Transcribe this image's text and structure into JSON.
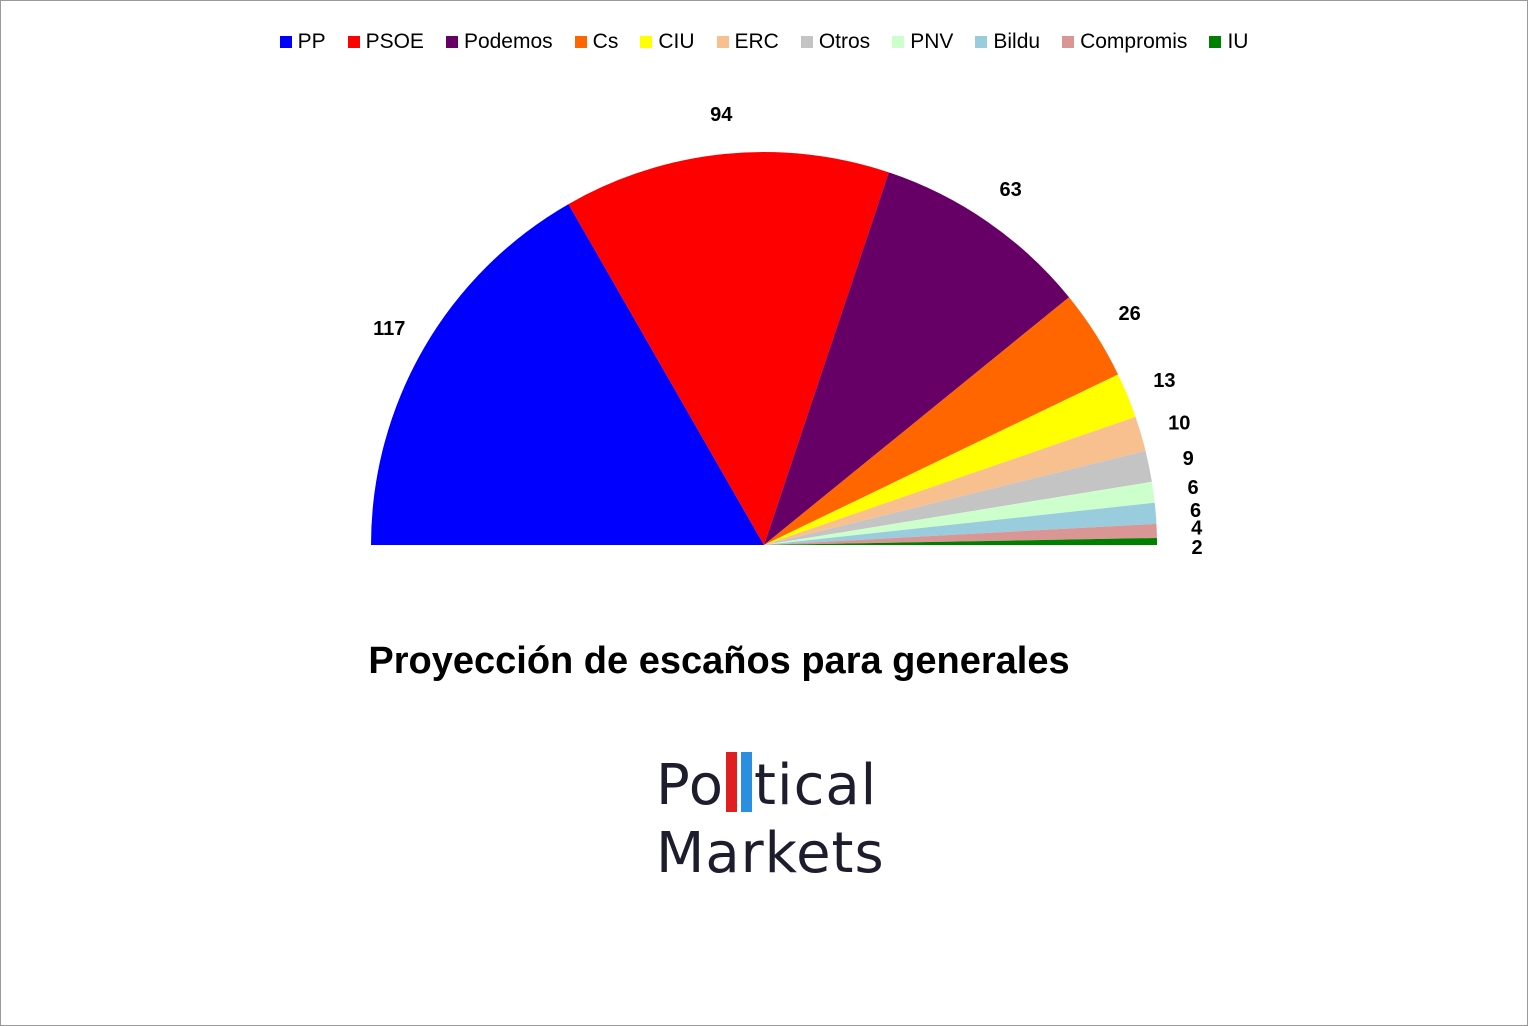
{
  "chart_data": {
    "type": "pie",
    "variant": "half-pie (parliament arc)",
    "title": "Proyección de escaños para generales",
    "categories": [
      "PP",
      "PSOE",
      "Podemos",
      "Cs",
      "CIU",
      "ERC",
      "Otros",
      "PNV",
      "Bildu",
      "Compromis",
      "IU"
    ],
    "values": [
      117,
      94,
      63,
      26,
      13,
      10,
      9,
      6,
      6,
      4,
      2
    ],
    "colors": [
      "#0000ff",
      "#ff0000",
      "#660066",
      "#ff6600",
      "#ffff00",
      "#f9c08f",
      "#c4c4c4",
      "#ccffcc",
      "#99ccdd",
      "#da9694",
      "#008000"
    ],
    "legend_position": "top"
  },
  "logo": {
    "line1_start": "Po",
    "line1_end": "tical",
    "line2": "Markets",
    "bar_colors": [
      "#e02020",
      "#2a8fe0"
    ]
  }
}
